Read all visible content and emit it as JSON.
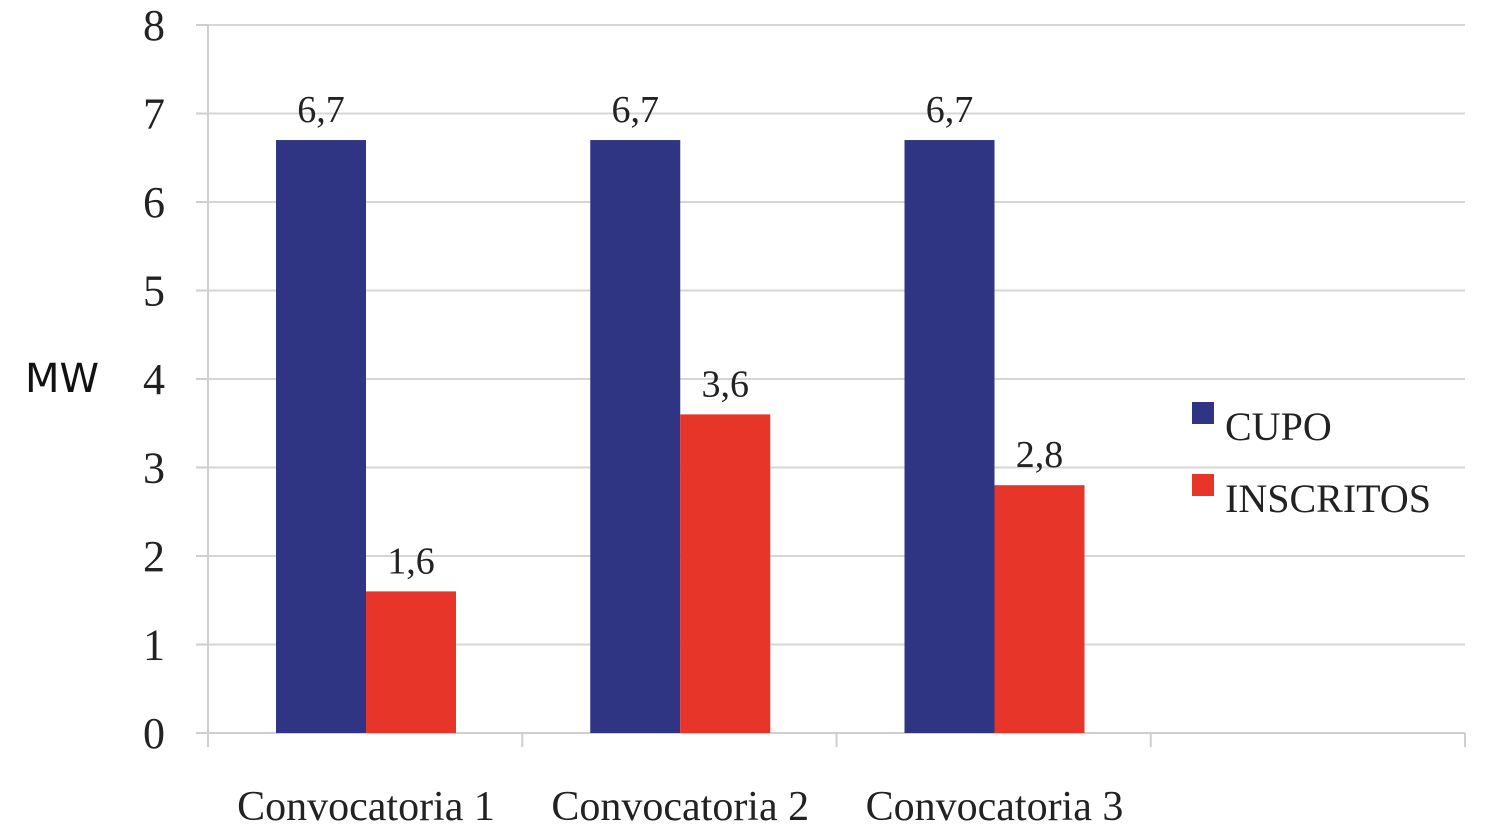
{
  "chart_data": {
    "type": "bar",
    "title": "",
    "xlabel": "",
    "ylabel": "MW",
    "ylim": [
      0,
      8
    ],
    "yticks": [
      "0",
      "1",
      "2",
      "3",
      "4",
      "5",
      "6",
      "7",
      "8"
    ],
    "grid": true,
    "legend_position": "right",
    "categories": [
      "Convocatoria 1",
      "Convocatoria 2",
      "Convocatoria 3"
    ],
    "series": [
      {
        "name": "CUPO",
        "color": "#2f3582",
        "values": [
          6.7,
          6.7,
          6.7
        ],
        "labels": [
          "6,7",
          "6,7",
          "6,7"
        ]
      },
      {
        "name": "INSCRITOS",
        "color": "#e8352a",
        "values": [
          1.6,
          3.6,
          2.8
        ],
        "labels": [
          "1,6",
          "3,6",
          "2,8"
        ]
      }
    ]
  }
}
